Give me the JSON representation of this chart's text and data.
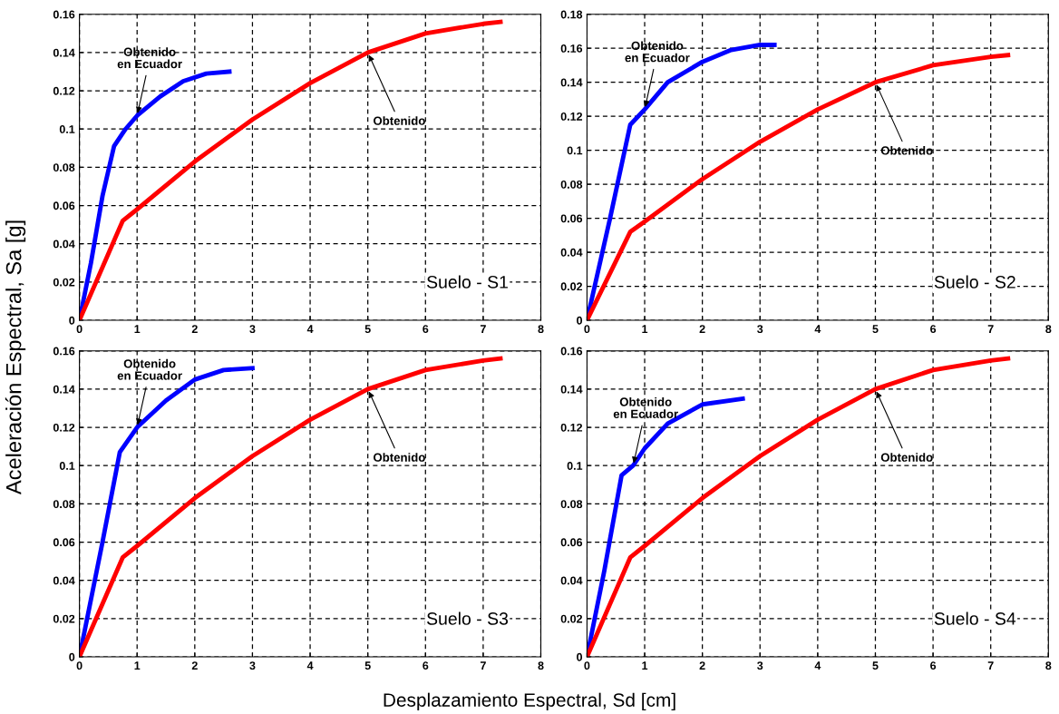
{
  "chart_data": [
    {
      "type": "line",
      "xlabel": "Desplazamiento Espectral, Sd [cm]",
      "ylabel": "Aceleración Espectral, Sa [g]",
      "xlim": [
        0,
        8
      ],
      "xticks": [
        0,
        1,
        2,
        3,
        4,
        5,
        6,
        7,
        8
      ],
      "ylim": [
        0,
        0.16
      ],
      "yticks": [
        0,
        0.02,
        0.04,
        0.06,
        0.08,
        0.1,
        0.12,
        0.14,
        0.16
      ],
      "grid": true,
      "line_style": "solid",
      "marker": "none",
      "series": [
        {
          "color": "#0000ff",
          "x": [
            0,
            0.2,
            0.4,
            0.6,
            0.8,
            1,
            1.4,
            1.8,
            2.2,
            2.6
          ],
          "values": [
            0,
            0.03,
            0.065,
            0.091,
            0.1,
            0.107,
            0.117,
            0.125,
            0.129,
            0.13
          ]
        },
        {
          "color": "#ff0000",
          "x": [
            0,
            0.75,
            1,
            2,
            3,
            4,
            5,
            6,
            7,
            7.3
          ],
          "values": [
            0,
            0.052,
            0.058,
            0.083,
            0.105,
            0.124,
            0.14,
            0.15,
            0.155,
            0.156
          ]
        }
      ],
      "annotations": [
        {
          "text": "Obtenido\nen Ecuador",
          "x": 1,
          "y": 0.107
        },
        {
          "text": "Obtenido",
          "x": 5,
          "y": 0.14
        },
        "Suelo - S1"
      ]
    },
    {
      "type": "line",
      "xlim": [
        0,
        8
      ],
      "xticks": [
        0,
        1,
        2,
        3,
        4,
        5,
        6,
        7,
        8
      ],
      "ylim": [
        0,
        0.18
      ],
      "yticks": [
        0,
        0.02,
        0.04,
        0.06,
        0.08,
        0.1,
        0.12,
        0.14,
        0.16,
        0.18
      ],
      "grid": true,
      "line_style": "solid",
      "marker": "none",
      "series": [
        {
          "color": "#0000ff",
          "x": [
            0,
            0.4,
            0.75,
            1,
            1.4,
            2,
            2.5,
            3,
            3.25
          ],
          "values": [
            0,
            0.06,
            0.115,
            0.124,
            0.14,
            0.152,
            0.159,
            0.162,
            0.162
          ]
        },
        {
          "color": "#ff0000",
          "x": [
            0,
            0.75,
            1,
            2,
            3,
            4,
            5,
            6,
            7,
            7.3
          ],
          "values": [
            0,
            0.052,
            0.058,
            0.083,
            0.105,
            0.124,
            0.14,
            0.15,
            0.155,
            0.156
          ]
        }
      ],
      "annotations": [
        {
          "text": "Obtenido\nen Ecuador",
          "x": 1,
          "y": 0.124
        },
        {
          "text": "Obtenido",
          "x": 5,
          "y": 0.14
        },
        "Suelo - S2"
      ]
    },
    {
      "type": "line",
      "xlim": [
        0,
        8
      ],
      "xticks": [
        0,
        1,
        2,
        3,
        4,
        5,
        6,
        7,
        8
      ],
      "ylim": [
        0,
        0.16
      ],
      "yticks": [
        0,
        0.02,
        0.04,
        0.06,
        0.08,
        0.1,
        0.12,
        0.14,
        0.16
      ],
      "grid": true,
      "line_style": "solid",
      "marker": "none",
      "series": [
        {
          "color": "#0000ff",
          "x": [
            0,
            0.4,
            0.7,
            1,
            1.5,
            2,
            2.5,
            3
          ],
          "values": [
            0,
            0.06,
            0.107,
            0.12,
            0.134,
            0.145,
            0.15,
            0.151
          ]
        },
        {
          "color": "#ff0000",
          "x": [
            0,
            0.75,
            1,
            2,
            3,
            4,
            5,
            6,
            7,
            7.3
          ],
          "values": [
            0,
            0.052,
            0.058,
            0.083,
            0.105,
            0.124,
            0.14,
            0.15,
            0.155,
            0.156
          ]
        }
      ],
      "annotations": [
        {
          "text": "Obtenido\nen Ecuador",
          "x": 1,
          "y": 0.12
        },
        {
          "text": "Obtenido",
          "x": 5,
          "y": 0.14
        },
        "Suelo - S3"
      ]
    },
    {
      "type": "line",
      "xlim": [
        0,
        8
      ],
      "xticks": [
        0,
        1,
        2,
        3,
        4,
        5,
        6,
        7,
        8
      ],
      "ylim": [
        0,
        0.16
      ],
      "yticks": [
        0,
        0.02,
        0.04,
        0.06,
        0.08,
        0.1,
        0.12,
        0.14,
        0.16
      ],
      "grid": true,
      "line_style": "solid",
      "marker": "none",
      "series": [
        {
          "color": "#0000ff",
          "x": [
            0,
            0.3,
            0.6,
            0.8,
            1,
            1.4,
            2,
            2.7
          ],
          "values": [
            0,
            0.045,
            0.095,
            0.1,
            0.109,
            0.122,
            0.132,
            0.135
          ]
        },
        {
          "color": "#ff0000",
          "x": [
            0,
            0.75,
            1,
            2,
            3,
            4,
            5,
            6,
            7,
            7.3
          ],
          "values": [
            0,
            0.052,
            0.058,
            0.083,
            0.105,
            0.124,
            0.14,
            0.15,
            0.155,
            0.156
          ]
        }
      ],
      "annotations": [
        {
          "text": "Obtenido\nen Ecuador",
          "x": 0.8,
          "y": 0.1
        },
        {
          "text": "Obtenido",
          "x": 5,
          "y": 0.14
        },
        "Suelo - S4"
      ]
    }
  ]
}
